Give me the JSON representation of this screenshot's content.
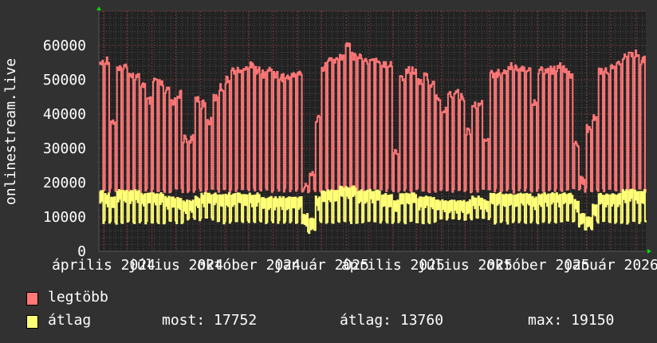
{
  "chart_data": {
    "type": "line",
    "ylabel": "onlinestream.live",
    "ylim": [
      0,
      70000
    ],
    "y_ticks": [
      "0",
      "10000",
      "20000",
      "30000",
      "40000",
      "50000",
      "60000"
    ],
    "x_range": [
      "2024-03-26",
      "2026-02-14"
    ],
    "x_tick_labels": [
      {
        "date": "2024-04-01",
        "label": "április 2024"
      },
      {
        "date": "2024-07-01",
        "label": "július 2024"
      },
      {
        "date": "2024-10-01",
        "label": "október 2024"
      },
      {
        "date": "2025-01-01",
        "label": "január 2025"
      },
      {
        "date": "2025-04-01",
        "label": "április 2025"
      },
      {
        "date": "2025-07-01",
        "label": "július 2025"
      },
      {
        "date": "2025-10-01",
        "label": "október 2025"
      },
      {
        "date": "2026-01-01",
        "label": "január 2026"
      }
    ],
    "grid": true,
    "legend_position": "bottom",
    "series": [
      {
        "name": "legtöbb",
        "color": "#ff7777",
        "weekly_peak": [
          56,
          57,
          39,
          54,
          55,
          53,
          52,
          50,
          45,
          51,
          50,
          48,
          45,
          47,
          34,
          34,
          46,
          44,
          39,
          46,
          49,
          51,
          54,
          54,
          55,
          56,
          54,
          53,
          54,
          53,
          52,
          52,
          53,
          53,
          20,
          24,
          40,
          55,
          57,
          57,
          58,
          62,
          58,
          58,
          57,
          58,
          57,
          56,
          56,
          30,
          52,
          54,
          54,
          51,
          52,
          50,
          46,
          42,
          47,
          48,
          46,
          36,
          44,
          45,
          34,
          53,
          53,
          54,
          55,
          55,
          55,
          54,
          45,
          54,
          54,
          54,
          55,
          54,
          53,
          33,
          22,
          37,
          40,
          54,
          54,
          55,
          56,
          58,
          58,
          59,
          57
        ],
        "weekly_low": 17
      },
      {
        "name": "átlag",
        "color": "#ffff77",
        "weekly_peak": [
          18,
          17,
          16,
          18,
          18,
          18,
          18,
          17,
          17,
          17,
          17,
          16,
          16,
          16,
          15,
          15,
          16,
          17,
          17,
          17,
          17,
          17,
          17,
          17,
          17,
          17,
          17,
          16,
          16,
          16,
          16,
          16,
          16,
          16,
          11,
          10,
          16,
          18,
          18,
          18,
          19,
          19,
          19,
          18,
          18,
          18,
          18,
          17,
          17,
          15,
          17,
          17,
          17,
          16,
          16,
          16,
          15,
          15,
          15,
          15,
          15,
          15,
          16,
          16,
          15,
          17,
          17,
          17,
          17,
          17,
          17,
          17,
          16,
          17,
          17,
          17,
          17,
          17,
          17,
          15,
          11,
          10,
          14,
          17,
          17,
          17,
          17,
          18,
          18,
          18,
          18
        ],
        "weekly_low": [
          8,
          8,
          8,
          8,
          8,
          8,
          8,
          8,
          8,
          8,
          8,
          8,
          8,
          8,
          9,
          9,
          9,
          9,
          9,
          8,
          8,
          8,
          8,
          8,
          8,
          8,
          8,
          8,
          8,
          8,
          8,
          8,
          8,
          8,
          5,
          6,
          8,
          8,
          8,
          8,
          8,
          8,
          8,
          8,
          8,
          8,
          8,
          8,
          8,
          8,
          8,
          8,
          8,
          8,
          8,
          8,
          9,
          9,
          9,
          9,
          9,
          9,
          9,
          9,
          9,
          8,
          8,
          8,
          8,
          8,
          8,
          8,
          8,
          8,
          8,
          8,
          8,
          8,
          8,
          7,
          6,
          6,
          8,
          8,
          8,
          8,
          8,
          8,
          8,
          8,
          8
        ]
      }
    ]
  },
  "legend": {
    "series1_label": "legtöbb",
    "series2_label": "átlag",
    "current": "most: 17752",
    "average": "átlag: 13760",
    "maximum": "max: 19150"
  }
}
